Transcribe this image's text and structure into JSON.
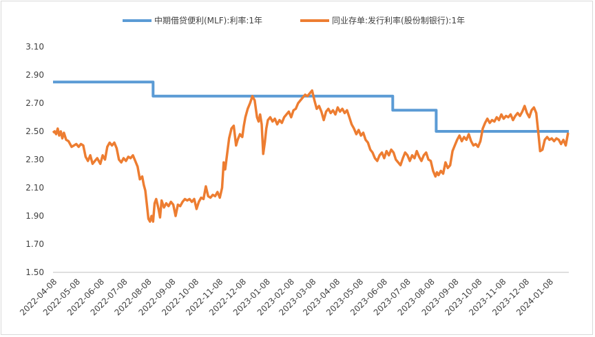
{
  "chart_data": {
    "type": "line",
    "title": "",
    "xlabel": "",
    "ylabel": "",
    "ylim": [
      1.5,
      3.1
    ],
    "yticks": [
      "3.10",
      "2.90",
      "2.70",
      "2.50",
      "2.30",
      "2.10",
      "1.90",
      "1.70",
      "1.50"
    ],
    "x_start": "2022-04-08",
    "x_end": "2024-02-02",
    "xticks": [
      "2022-04-08",
      "2022-05-08",
      "2022-06-08",
      "2022-07-08",
      "2022-08-08",
      "2022-09-08",
      "2022-10-08",
      "2022-11-08",
      "2022-12-08",
      "2023-01-08",
      "2023-02-08",
      "2023-03-08",
      "2023-04-08",
      "2023-05-08",
      "2023-06-08",
      "2023-07-08",
      "2023-08-08",
      "2023-09-08",
      "2023-10-08",
      "2023-11-08",
      "2023-12-08",
      "2024-01-08"
    ],
    "grid": false,
    "legend_position": "top",
    "series": [
      {
        "name": "中期借贷便利(MLF):利率:1年",
        "color": "#5b9bd5",
        "step": true,
        "points": [
          [
            "2022-04-08",
            2.85
          ],
          [
            "2022-08-15",
            2.85
          ],
          [
            "2022-08-15",
            2.75
          ],
          [
            "2023-06-20",
            2.75
          ],
          [
            "2023-06-20",
            2.65
          ],
          [
            "2023-08-15",
            2.65
          ],
          [
            "2023-08-15",
            2.5
          ],
          [
            "2024-02-02",
            2.5
          ]
        ]
      },
      {
        "name": "同业存单:发行利率(股份制银行):1年",
        "color": "#ed7d31",
        "step": false,
        "points": [
          [
            "2022-04-08",
            2.49
          ],
          [
            "2022-04-10",
            2.5
          ],
          [
            "2022-04-12",
            2.48
          ],
          [
            "2022-04-14",
            2.52
          ],
          [
            "2022-04-16",
            2.47
          ],
          [
            "2022-04-18",
            2.5
          ],
          [
            "2022-04-20",
            2.45
          ],
          [
            "2022-04-22",
            2.49
          ],
          [
            "2022-04-25",
            2.44
          ],
          [
            "2022-04-28",
            2.43
          ],
          [
            "2022-05-02",
            2.39
          ],
          [
            "2022-05-05",
            2.4
          ],
          [
            "2022-05-08",
            2.41
          ],
          [
            "2022-05-11",
            2.39
          ],
          [
            "2022-05-14",
            2.41
          ],
          [
            "2022-05-17",
            2.4
          ],
          [
            "2022-05-20",
            2.32
          ],
          [
            "2022-05-23",
            2.29
          ],
          [
            "2022-05-26",
            2.33
          ],
          [
            "2022-05-29",
            2.27
          ],
          [
            "2022-06-01",
            2.29
          ],
          [
            "2022-06-04",
            2.31
          ],
          [
            "2022-06-08",
            2.27
          ],
          [
            "2022-06-11",
            2.33
          ],
          [
            "2022-06-14",
            2.3
          ],
          [
            "2022-06-17",
            2.39
          ],
          [
            "2022-06-20",
            2.42
          ],
          [
            "2022-06-23",
            2.4
          ],
          [
            "2022-06-26",
            2.42
          ],
          [
            "2022-06-29",
            2.38
          ],
          [
            "2022-07-02",
            2.3
          ],
          [
            "2022-07-05",
            2.28
          ],
          [
            "2022-07-08",
            2.31
          ],
          [
            "2022-07-11",
            2.29
          ],
          [
            "2022-07-14",
            2.32
          ],
          [
            "2022-07-17",
            2.31
          ],
          [
            "2022-07-20",
            2.33
          ],
          [
            "2022-07-23",
            2.29
          ],
          [
            "2022-07-26",
            2.25
          ],
          [
            "2022-07-29",
            2.16
          ],
          [
            "2022-08-01",
            2.18
          ],
          [
            "2022-08-03",
            2.12
          ],
          [
            "2022-08-05",
            2.08
          ],
          [
            "2022-08-07",
            1.98
          ],
          [
            "2022-08-09",
            1.88
          ],
          [
            "2022-08-11",
            1.86
          ],
          [
            "2022-08-13",
            1.9
          ],
          [
            "2022-08-15",
            1.86
          ],
          [
            "2022-08-17",
            1.99
          ],
          [
            "2022-08-19",
            2.02
          ],
          [
            "2022-08-22",
            1.95
          ],
          [
            "2022-08-24",
            1.89
          ],
          [
            "2022-08-26",
            2.01
          ],
          [
            "2022-08-29",
            1.96
          ],
          [
            "2022-09-01",
            1.99
          ],
          [
            "2022-09-04",
            1.97
          ],
          [
            "2022-09-07",
            2.0
          ],
          [
            "2022-09-10",
            1.98
          ],
          [
            "2022-09-13",
            1.9
          ],
          [
            "2022-09-16",
            1.98
          ],
          [
            "2022-09-19",
            1.97
          ],
          [
            "2022-09-22",
            2.0
          ],
          [
            "2022-09-25",
            2.02
          ],
          [
            "2022-09-28",
            2.01
          ],
          [
            "2022-10-01",
            2.02
          ],
          [
            "2022-10-04",
            2.0
          ],
          [
            "2022-10-07",
            2.02
          ],
          [
            "2022-10-10",
            1.95
          ],
          [
            "2022-10-13",
            2.0
          ],
          [
            "2022-10-16",
            2.03
          ],
          [
            "2022-10-19",
            2.02
          ],
          [
            "2022-10-22",
            2.11
          ],
          [
            "2022-10-25",
            2.04
          ],
          [
            "2022-10-28",
            2.03
          ],
          [
            "2022-10-31",
            2.05
          ],
          [
            "2022-11-03",
            2.04
          ],
          [
            "2022-11-06",
            2.07
          ],
          [
            "2022-11-09",
            2.03
          ],
          [
            "2022-11-12",
            2.1
          ],
          [
            "2022-11-14",
            2.28
          ],
          [
            "2022-11-16",
            2.23
          ],
          [
            "2022-11-18",
            2.32
          ],
          [
            "2022-11-21",
            2.45
          ],
          [
            "2022-11-24",
            2.52
          ],
          [
            "2022-11-27",
            2.54
          ],
          [
            "2022-11-30",
            2.4
          ],
          [
            "2022-12-02",
            2.44
          ],
          [
            "2022-12-05",
            2.48
          ],
          [
            "2022-12-08",
            2.46
          ],
          [
            "2022-12-10",
            2.54
          ],
          [
            "2022-12-12",
            2.6
          ],
          [
            "2022-12-15",
            2.66
          ],
          [
            "2022-12-18",
            2.7
          ],
          [
            "2022-12-21",
            2.75
          ],
          [
            "2022-12-24",
            2.72
          ],
          [
            "2022-12-27",
            2.6
          ],
          [
            "2022-12-29",
            2.57
          ],
          [
            "2022-12-31",
            2.62
          ],
          [
            "2023-01-02",
            2.55
          ],
          [
            "2023-01-04",
            2.34
          ],
          [
            "2023-01-06",
            2.42
          ],
          [
            "2023-01-08",
            2.52
          ],
          [
            "2023-01-10",
            2.58
          ],
          [
            "2023-01-13",
            2.6
          ],
          [
            "2023-01-16",
            2.57
          ],
          [
            "2023-01-19",
            2.59
          ],
          [
            "2023-01-22",
            2.55
          ],
          [
            "2023-01-25",
            2.58
          ],
          [
            "2023-01-28",
            2.56
          ],
          [
            "2023-01-31",
            2.6
          ],
          [
            "2023-02-03",
            2.62
          ],
          [
            "2023-02-06",
            2.64
          ],
          [
            "2023-02-09",
            2.6
          ],
          [
            "2023-02-12",
            2.65
          ],
          [
            "2023-02-15",
            2.66
          ],
          [
            "2023-02-18",
            2.7
          ],
          [
            "2023-02-21",
            2.72
          ],
          [
            "2023-02-24",
            2.74
          ],
          [
            "2023-02-27",
            2.76
          ],
          [
            "2023-03-02",
            2.75
          ],
          [
            "2023-03-05",
            2.77
          ],
          [
            "2023-03-08",
            2.79
          ],
          [
            "2023-03-11",
            2.72
          ],
          [
            "2023-03-14",
            2.66
          ],
          [
            "2023-03-17",
            2.68
          ],
          [
            "2023-03-20",
            2.64
          ],
          [
            "2023-03-23",
            2.58
          ],
          [
            "2023-03-26",
            2.64
          ],
          [
            "2023-03-29",
            2.66
          ],
          [
            "2023-04-01",
            2.63
          ],
          [
            "2023-04-04",
            2.65
          ],
          [
            "2023-04-07",
            2.62
          ],
          [
            "2023-04-10",
            2.67
          ],
          [
            "2023-04-13",
            2.64
          ],
          [
            "2023-04-16",
            2.66
          ],
          [
            "2023-04-19",
            2.63
          ],
          [
            "2023-04-22",
            2.65
          ],
          [
            "2023-04-25",
            2.6
          ],
          [
            "2023-04-28",
            2.55
          ],
          [
            "2023-05-01",
            2.52
          ],
          [
            "2023-05-04",
            2.48
          ],
          [
            "2023-05-07",
            2.51
          ],
          [
            "2023-05-10",
            2.47
          ],
          [
            "2023-05-13",
            2.49
          ],
          [
            "2023-05-16",
            2.44
          ],
          [
            "2023-05-19",
            2.42
          ],
          [
            "2023-05-22",
            2.37
          ],
          [
            "2023-05-25",
            2.35
          ],
          [
            "2023-05-28",
            2.31
          ],
          [
            "2023-05-31",
            2.29
          ],
          [
            "2023-06-03",
            2.33
          ],
          [
            "2023-06-06",
            2.35
          ],
          [
            "2023-06-09",
            2.31
          ],
          [
            "2023-06-12",
            2.36
          ],
          [
            "2023-06-15",
            2.33
          ],
          [
            "2023-06-18",
            2.37
          ],
          [
            "2023-06-21",
            2.35
          ],
          [
            "2023-06-24",
            2.3
          ],
          [
            "2023-06-27",
            2.28
          ],
          [
            "2023-06-30",
            2.26
          ],
          [
            "2023-07-03",
            2.31
          ],
          [
            "2023-07-06",
            2.35
          ],
          [
            "2023-07-09",
            2.33
          ],
          [
            "2023-07-12",
            2.29
          ],
          [
            "2023-07-15",
            2.33
          ],
          [
            "2023-07-18",
            2.31
          ],
          [
            "2023-07-21",
            2.36
          ],
          [
            "2023-07-24",
            2.32
          ],
          [
            "2023-07-27",
            2.29
          ],
          [
            "2023-07-30",
            2.33
          ],
          [
            "2023-08-02",
            2.35
          ],
          [
            "2023-08-05",
            2.3
          ],
          [
            "2023-08-08",
            2.29
          ],
          [
            "2023-08-11",
            2.22
          ],
          [
            "2023-08-14",
            2.18
          ],
          [
            "2023-08-16",
            2.21
          ],
          [
            "2023-08-18",
            2.19
          ],
          [
            "2023-08-21",
            2.22
          ],
          [
            "2023-08-24",
            2.2
          ],
          [
            "2023-08-27",
            2.28
          ],
          [
            "2023-08-30",
            2.24
          ],
          [
            "2023-09-02",
            2.26
          ],
          [
            "2023-09-05",
            2.36
          ],
          [
            "2023-09-08",
            2.4
          ],
          [
            "2023-09-11",
            2.44
          ],
          [
            "2023-09-14",
            2.47
          ],
          [
            "2023-09-17",
            2.43
          ],
          [
            "2023-09-20",
            2.46
          ],
          [
            "2023-09-23",
            2.44
          ],
          [
            "2023-09-26",
            2.48
          ],
          [
            "2023-09-29",
            2.43
          ],
          [
            "2023-10-02",
            2.4
          ],
          [
            "2023-10-05",
            2.41
          ],
          [
            "2023-10-08",
            2.39
          ],
          [
            "2023-10-11",
            2.43
          ],
          [
            "2023-10-14",
            2.52
          ],
          [
            "2023-10-17",
            2.56
          ],
          [
            "2023-10-20",
            2.59
          ],
          [
            "2023-10-23",
            2.56
          ],
          [
            "2023-10-26",
            2.58
          ],
          [
            "2023-10-29",
            2.57
          ],
          [
            "2023-11-01",
            2.6
          ],
          [
            "2023-11-04",
            2.58
          ],
          [
            "2023-11-07",
            2.62
          ],
          [
            "2023-11-10",
            2.59
          ],
          [
            "2023-11-13",
            2.61
          ],
          [
            "2023-11-16",
            2.6
          ],
          [
            "2023-11-19",
            2.62
          ],
          [
            "2023-11-22",
            2.58
          ],
          [
            "2023-11-25",
            2.61
          ],
          [
            "2023-11-28",
            2.63
          ],
          [
            "2023-12-01",
            2.61
          ],
          [
            "2023-12-04",
            2.64
          ],
          [
            "2023-12-07",
            2.68
          ],
          [
            "2023-12-10",
            2.63
          ],
          [
            "2023-12-13",
            2.6
          ],
          [
            "2023-12-16",
            2.65
          ],
          [
            "2023-12-19",
            2.67
          ],
          [
            "2023-12-22",
            2.63
          ],
          [
            "2023-12-25",
            2.47
          ],
          [
            "2023-12-27",
            2.36
          ],
          [
            "2023-12-30",
            2.37
          ],
          [
            "2024-01-02",
            2.44
          ],
          [
            "2024-01-05",
            2.46
          ],
          [
            "2024-01-08",
            2.44
          ],
          [
            "2024-01-11",
            2.45
          ],
          [
            "2024-01-14",
            2.43
          ],
          [
            "2024-01-17",
            2.45
          ],
          [
            "2024-01-20",
            2.44
          ],
          [
            "2024-01-23",
            2.41
          ],
          [
            "2024-01-26",
            2.44
          ],
          [
            "2024-01-29",
            2.4
          ],
          [
            "2024-02-01",
            2.49
          ]
        ]
      }
    ]
  }
}
